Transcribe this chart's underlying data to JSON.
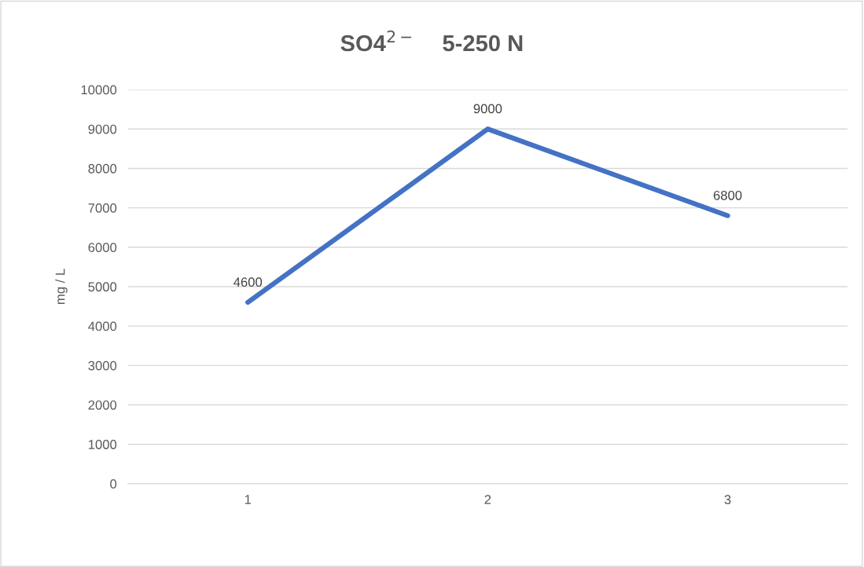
{
  "chart_data": {
    "type": "line",
    "title": "SO4$^{2−}$    5-250 N",
    "ylabel": "mg / L",
    "categories": [
      "1",
      "2",
      "3"
    ],
    "series": [
      {
        "color": "#4472c4",
        "values": [
          4600,
          9000,
          6800
        ]
      }
    ],
    "ylim": [
      0,
      10000
    ],
    "yticks": [
      0,
      1000,
      2000,
      3000,
      4000,
      5000,
      6000,
      7000,
      8000,
      9000,
      10000
    ],
    "grid": "y",
    "data_labels": true,
    "marker": "none",
    "line_style": "solid"
  }
}
